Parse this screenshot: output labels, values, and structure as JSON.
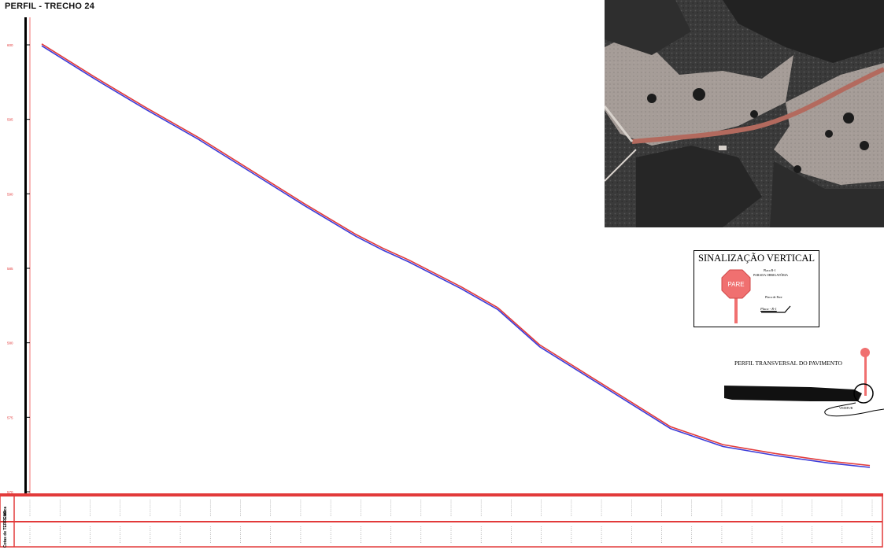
{
  "title": "PERFIL - TRECHO 24",
  "profile": {
    "y_ticks": [
      "600",
      "595",
      "590",
      "585",
      "580",
      "575",
      "570"
    ],
    "line_colors": {
      "upper": "#e23a3a",
      "lower": "#3c3cd8"
    },
    "profile_points_m": [
      [
        0,
        600.0
      ],
      [
        50,
        597.8
      ],
      [
        100,
        595.7
      ],
      [
        150,
        593.7
      ],
      [
        200,
        591.5
      ],
      [
        250,
        589.3
      ],
      [
        300,
        587.2
      ],
      [
        325,
        586.3
      ],
      [
        350,
        585.5
      ],
      [
        400,
        583.7
      ],
      [
        435,
        582.3
      ],
      [
        475,
        579.8
      ],
      [
        525,
        577.6
      ],
      [
        575,
        575.4
      ],
      [
        600,
        574.3
      ],
      [
        625,
        573.7
      ],
      [
        650,
        573.1
      ],
      [
        700,
        572.5
      ],
      [
        750,
        572.0
      ],
      [
        790,
        571.7
      ]
    ]
  },
  "bottom_table": {
    "row_labels": [
      "Estaca",
      "Cotas de TERRENO"
    ],
    "column_count": 29
  },
  "signal_legend": {
    "title": "SINALIZAÇÃO VERTICAL",
    "stop_sign_text": "PARE",
    "sub1": "Placa R-1",
    "sub2": "PARADA OBRIGATÓRIA",
    "sub3": "Placa de Pare",
    "sub4": "Placa - R-1"
  },
  "pavement": {
    "title": "PERFIL TRANSVERSAL DO PAVIMENTO",
    "sub": "VEDIFUR"
  },
  "aerial_image": {
    "description_colors": {
      "vegetation": "#2a2a2a",
      "road": "#b36a5e"
    }
  }
}
